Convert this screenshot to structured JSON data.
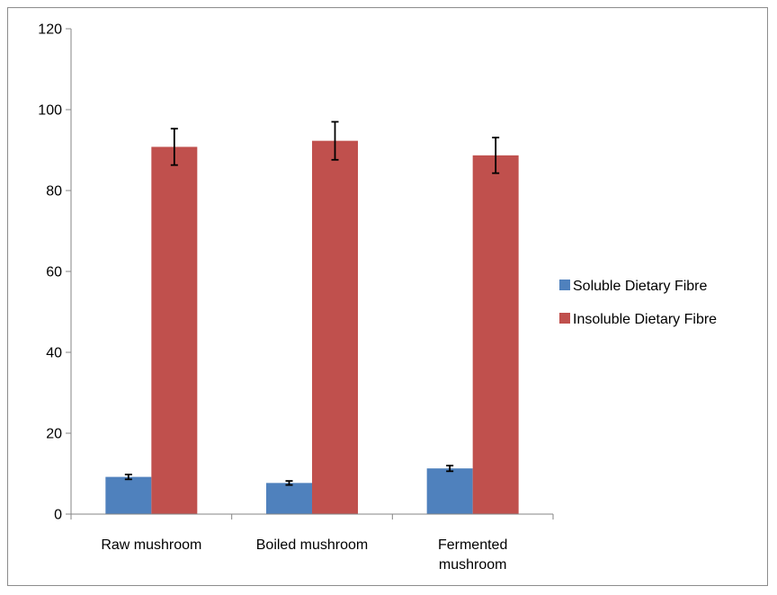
{
  "chart_data": {
    "type": "bar",
    "title": "",
    "xlabel": "",
    "ylabel": "",
    "categories": [
      [
        "Raw mushroom"
      ],
      [
        "Boiled mushroom"
      ],
      [
        "Fermented",
        "mushroom"
      ]
    ],
    "ylim": [
      0,
      120
    ],
    "yticks": [
      0,
      20,
      40,
      60,
      80,
      100,
      120
    ],
    "grid": false,
    "legend_position": "right",
    "series": [
      {
        "name": "Soluble Dietary Fibre",
        "color": "#4f81bd",
        "values": [
          9.2,
          7.7,
          11.3
        ],
        "errors": [
          0.6,
          0.5,
          0.7
        ]
      },
      {
        "name": "Insoluble Dietary Fibre",
        "color": "#c0504d",
        "values": [
          90.8,
          92.3,
          88.7
        ],
        "errors": [
          4.5,
          4.7,
          4.4
        ]
      }
    ]
  }
}
